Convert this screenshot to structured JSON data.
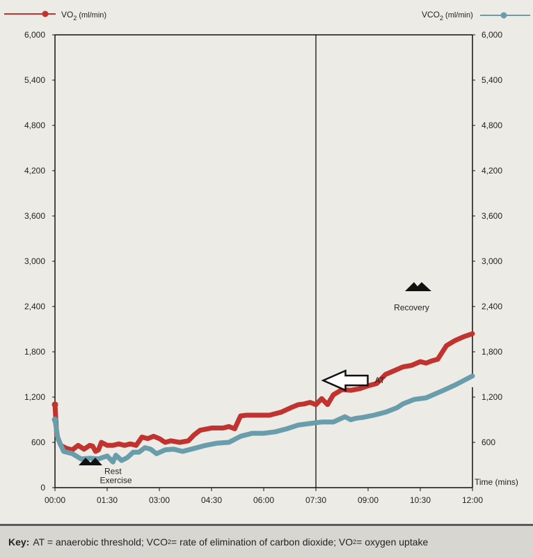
{
  "chart_data": {
    "type": "line",
    "xlabel": "Time (mins)",
    "x_tick_labels": [
      "00:00",
      "01:30",
      "03:00",
      "04:30",
      "06:00",
      "07:30",
      "09:00",
      "10:30",
      "12:00"
    ],
    "y_tick_labels": [
      "0",
      "600",
      "1,200",
      "1,800",
      "2,400",
      "3,000",
      "3,600",
      "4,200",
      "4,800",
      "5,400",
      "6,000"
    ],
    "right_y_tick_labels": [
      "600",
      "1,200",
      "1,800",
      "2,400",
      "3,000",
      "3,600",
      "4,200",
      "4,800",
      "5,400",
      "6,000"
    ],
    "xlim": [
      0,
      720
    ],
    "ylim": [
      0,
      6000
    ],
    "grid": false,
    "series": [
      {
        "name": "VO₂ (ml/min)",
        "legend_main": "VO",
        "legend_sub": "2",
        "legend_unit": "(ml/min)",
        "color": "#c0332e",
        "points": [
          [
            0,
            1100
          ],
          [
            3,
            700
          ],
          [
            10,
            560
          ],
          [
            20,
            520
          ],
          [
            30,
            500
          ],
          [
            40,
            560
          ],
          [
            50,
            510
          ],
          [
            60,
            560
          ],
          [
            65,
            550
          ],
          [
            70,
            480
          ],
          [
            75,
            500
          ],
          [
            80,
            600
          ],
          [
            90,
            560
          ],
          [
            100,
            560
          ],
          [
            110,
            580
          ],
          [
            120,
            560
          ],
          [
            130,
            580
          ],
          [
            140,
            560
          ],
          [
            150,
            670
          ],
          [
            160,
            650
          ],
          [
            170,
            680
          ],
          [
            180,
            650
          ],
          [
            190,
            600
          ],
          [
            200,
            620
          ],
          [
            215,
            600
          ],
          [
            230,
            620
          ],
          [
            240,
            700
          ],
          [
            250,
            760
          ],
          [
            270,
            790
          ],
          [
            290,
            790
          ],
          [
            300,
            810
          ],
          [
            310,
            780
          ],
          [
            320,
            950
          ],
          [
            330,
            960
          ],
          [
            350,
            960
          ],
          [
            370,
            960
          ],
          [
            390,
            1000
          ],
          [
            410,
            1070
          ],
          [
            420,
            1100
          ],
          [
            430,
            1110
          ],
          [
            440,
            1130
          ],
          [
            450,
            1100
          ],
          [
            460,
            1180
          ],
          [
            470,
            1100
          ],
          [
            480,
            1230
          ],
          [
            495,
            1300
          ],
          [
            510,
            1290
          ],
          [
            525,
            1310
          ],
          [
            540,
            1350
          ],
          [
            555,
            1380
          ],
          [
            570,
            1500
          ],
          [
            585,
            1550
          ],
          [
            600,
            1600
          ],
          [
            615,
            1620
          ],
          [
            630,
            1670
          ],
          [
            640,
            1650
          ],
          [
            650,
            1680
          ],
          [
            660,
            1700
          ],
          [
            675,
            1880
          ],
          [
            690,
            1950
          ],
          [
            705,
            2000
          ],
          [
            720,
            2040
          ]
        ]
      },
      {
        "name": "VCO₂ (ml/min)",
        "legend_main": "VCO",
        "legend_sub": "2",
        "legend_unit": "(ml/min)",
        "color": "#6a9dab",
        "points": [
          [
            0,
            900
          ],
          [
            5,
            650
          ],
          [
            15,
            480
          ],
          [
            30,
            450
          ],
          [
            45,
            380
          ],
          [
            60,
            390
          ],
          [
            75,
            380
          ],
          [
            90,
            420
          ],
          [
            100,
            340
          ],
          [
            105,
            430
          ],
          [
            115,
            360
          ],
          [
            125,
            400
          ],
          [
            135,
            470
          ],
          [
            145,
            470
          ],
          [
            155,
            530
          ],
          [
            165,
            510
          ],
          [
            175,
            450
          ],
          [
            190,
            500
          ],
          [
            205,
            510
          ],
          [
            220,
            480
          ],
          [
            240,
            520
          ],
          [
            260,
            560
          ],
          [
            280,
            590
          ],
          [
            300,
            600
          ],
          [
            320,
            680
          ],
          [
            340,
            720
          ],
          [
            360,
            720
          ],
          [
            380,
            740
          ],
          [
            400,
            780
          ],
          [
            420,
            830
          ],
          [
            440,
            850
          ],
          [
            460,
            870
          ],
          [
            480,
            870
          ],
          [
            500,
            940
          ],
          [
            510,
            900
          ],
          [
            520,
            920
          ],
          [
            530,
            930
          ],
          [
            550,
            960
          ],
          [
            570,
            1000
          ],
          [
            590,
            1060
          ],
          [
            600,
            1110
          ],
          [
            620,
            1170
          ],
          [
            640,
            1190
          ],
          [
            655,
            1240
          ],
          [
            670,
            1290
          ],
          [
            690,
            1360
          ],
          [
            705,
            1420
          ],
          [
            720,
            1480
          ]
        ]
      }
    ],
    "at_line_x": 450,
    "annotations": [
      {
        "text": "AT",
        "x": 465,
        "y": 1420
      },
      {
        "text": "Rest",
        "x": 100,
        "y": 180
      },
      {
        "text": "Exercise",
        "x": 105,
        "y": 60
      },
      {
        "text": "Recovery",
        "x": 615,
        "y": 2350
      }
    ],
    "legend_placement": "top"
  },
  "key": {
    "label": "Key:",
    "at_text": "AT = anaerobic threshold; VCO",
    "sub1": "2",
    "vco2_text": " = rate of elimination of carbon dioxide; VO",
    "sub2": "2",
    "vo2_text": " = oxygen uptake"
  }
}
